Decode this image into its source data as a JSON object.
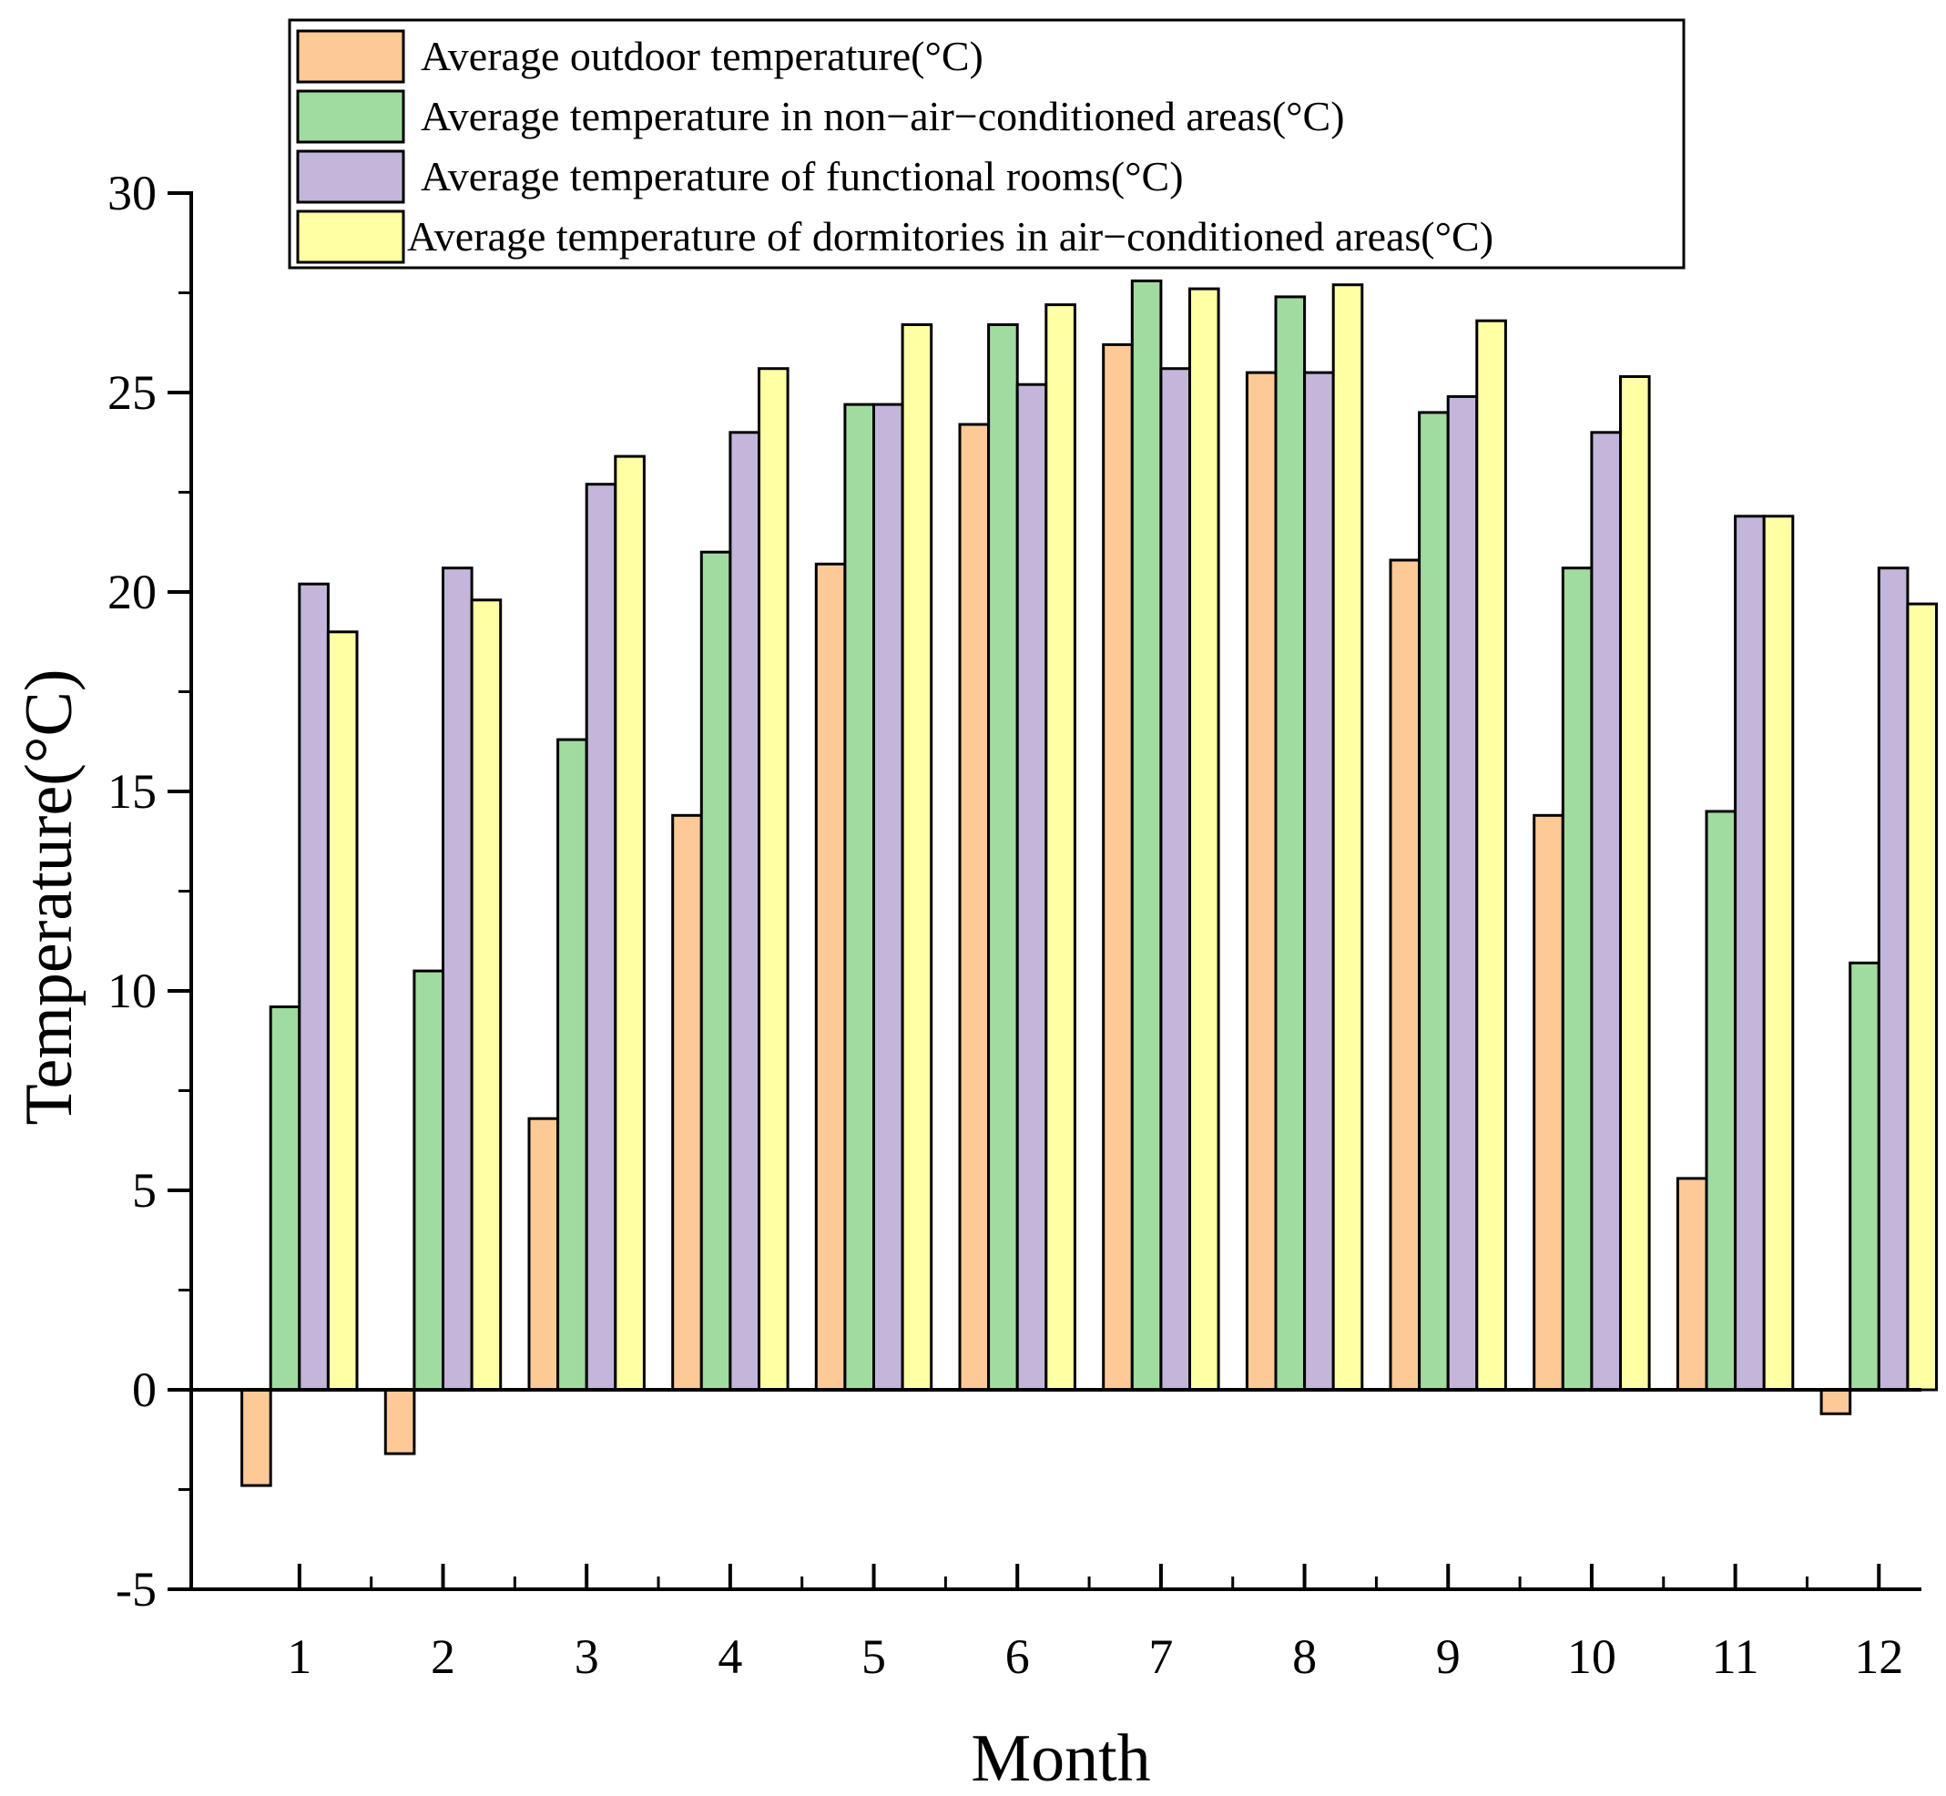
{
  "chart_data": {
    "type": "bar",
    "xlabel": "Month",
    "ylabel": "Temperature(°C)",
    "ylim": [
      -5,
      30
    ],
    "yticks": [
      -5,
      0,
      5,
      10,
      15,
      20,
      25,
      30
    ],
    "categories": [
      "1",
      "2",
      "3",
      "4",
      "5",
      "6",
      "7",
      "8",
      "9",
      "10",
      "11",
      "12"
    ],
    "legend_position": "top",
    "series": [
      {
        "name": "Average outdoor temperature(°C)",
        "color": "#FDC997",
        "values": [
          -2.4,
          -1.6,
          6.8,
          14.4,
          20.7,
          24.2,
          26.2,
          25.5,
          20.8,
          14.4,
          5.3,
          -0.6
        ]
      },
      {
        "name": "Average temperature in non−air−conditioned areas(°C)",
        "color": "#A0DBA0",
        "values": [
          9.6,
          10.5,
          16.3,
          21.0,
          24.7,
          26.7,
          27.8,
          27.4,
          24.5,
          20.6,
          14.5,
          10.7
        ]
      },
      {
        "name": "Average temperature of functional rooms(°C)",
        "color": "#C3B6DA",
        "values": [
          20.2,
          20.6,
          22.7,
          24.0,
          24.7,
          25.2,
          25.6,
          25.5,
          24.9,
          24.0,
          21.9,
          20.6
        ]
      },
      {
        "name": "Average temperature of dormitories in air−conditioned areas(°C)",
        "color": "#FFFFA3",
        "values": [
          19.0,
          19.8,
          23.4,
          25.6,
          26.7,
          27.2,
          27.6,
          27.7,
          26.8,
          25.4,
          21.9,
          19.7
        ]
      }
    ]
  }
}
